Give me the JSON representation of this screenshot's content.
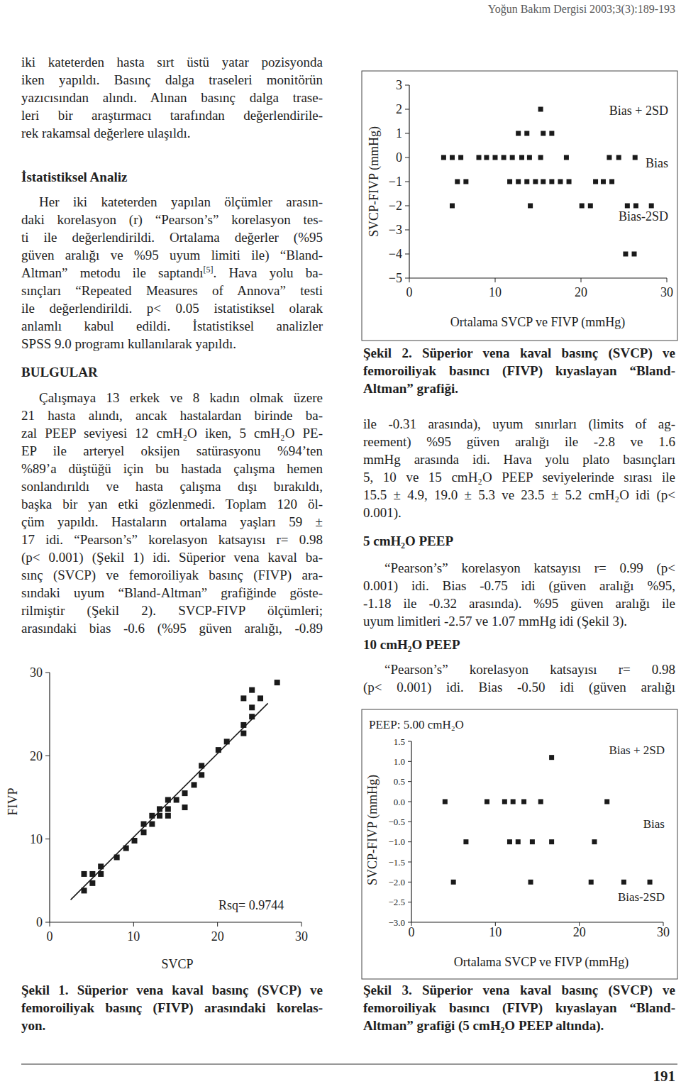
{
  "header": "Yoğun Bakım Dergisi 2003;3(3):189-193",
  "page_number": "191",
  "left_column": [
    {
      "lines": [
        "iki kateterden hasta sırt üstü yatar pozisyonda",
        "iken yapıldı. Basınç dalga traseleri monitörün",
        "yazıcısından alındı. Alınan basınç dalga trase-",
        "leri bir araştırmacı tarafından değerlendirile-",
        "rek rakamsal değerlere ulaşıldı."
      ]
    },
    {
      "heading": "İstatistiksel Analiz"
    },
    {
      "lines": [
        "Her iki kateterden yapılan ölçümler arasın-",
        "daki korelasyon (r) “Pearson’s” korelasyon tes-",
        "ti ile değerlendirildi. Ortalama değerler (%95",
        "güven aralığı ve %95 uyum limiti ile) “Bland-",
        [
          "Altman” metodu ile saptandı",
          {
            "sup": "[5]"
          },
          ". Hava yolu ba-"
        ],
        "sınçları “Repeated Measures of Annova” testi",
        "ile değerlendirildi. p< 0.05 istatistiksel olarak",
        "anlamlı kabul edildi. İstatistiksel analizler",
        "SPSS 9.0 programı kullanılarak yapıldı."
      ]
    },
    {
      "heading": "BULGULAR"
    },
    {
      "lines": [
        "Çalışmaya 13 erkek ve 8 kadın olmak üzere",
        "21 hasta alındı, ancak hastalardan birinde ba-",
        "zal PEEP seviyesi 12 cmH₂O iken, 5 cmH₂O PE-",
        "EP ile arteryel oksijen satürasyonu %94’ten",
        "%89’a düştüğü için bu hastada çalışma hemen",
        "sonlandırıldı ve hasta çalışma dışı bırakıldı,",
        "başka bir yan etki gözlenmedi. Toplam 120 öl-",
        "çüm yapıldı. Hastaların ortalama yaşları 59 ±",
        "17 idi. “Pearson’s” korelasyon katsayısı r= 0.98",
        "(p< 0.001) (Şekil 1) idi. Süperior vena kaval ba-",
        "sınç (SVCP) ve femoroiliyak basınç (FIVP) ara-",
        "sındaki uyum “Bland-Altman” grafiğinde göste-",
        "rilmiştir (Şekil 2). SVCP-FIVP ölçümleri;",
        "arasındaki bias -0.6 (%95 güven aralığı, -0.89"
      ]
    }
  ],
  "right_column": [
    {
      "lines": [
        "ile -0.31 arasında), uyum sınırları (limits of ag-",
        "reement) %95 güven aralığı ile -2.8 ve 1.6",
        "mmHg arasında idi. Hava yolu plato basınçları",
        "5, 10 ve 15 cmH₂O PEEP seviyelerinde sırası ile",
        "15.5 ± 4.9, 19.0 ± 5.3 ve 23.5 ± 5.2 cmH₂O idi (p<",
        "0.001)."
      ]
    },
    {
      "heading": "5 cmH₂O PEEP"
    },
    {
      "lines": [
        "“Pearson’s” korelasyon katsayısı r= 0.99 (p<",
        "0.001) idi. Bias -0.75 idi (güven aralığı %95,",
        "-1.18 ile -0.32 arasında). %95 güven aralığı ile",
        "uyum limitleri -2.57 ve 1.07 mmHg idi (Şekil 3)."
      ]
    },
    {
      "heading": "10 cmH₂O PEEP"
    },
    {
      "lines": [
        "“Pearson’s” korelasyon katsayısı r= 0.98",
        "(p< 0.001) idi. Bias -0.50 idi (güven aralığı"
      ]
    }
  ],
  "captions": [
    {
      "lines": [
        "Şekil 1. Süperior vena kaval basınç (SVCP) ve",
        "femoroiliyak basınç (FIVP) arasındaki korelas-",
        "yon."
      ]
    },
    {
      "lines": [
        "Şekil 2. Süperior vena kaval basınç (SVCP) ve",
        "femoroiliyak basıncı (FIVP) kıyaslayan “Bland-",
        "Altman” grafiği."
      ]
    },
    {
      "lines": [
        "Şekil 3. Süperior vena kaval basınç (SVCP) ve",
        "femoroiliyak basıncı (FIVP) kıyaslayan “Bland-",
        "Altman” grafiği (5 cmH₂O PEEP altında)."
      ]
    }
  ],
  "chart_data": [
    {
      "type": "scatter",
      "x_label": "SVCP",
      "y_label": "FIVP",
      "xlim": [
        0,
        30
      ],
      "ylim": [
        0,
        30
      ],
      "xticks": [
        0,
        10,
        20,
        30
      ],
      "yticks": [
        0,
        10,
        20,
        30
      ],
      "marker": "square",
      "color": "#1a1a1a",
      "x": [
        4.1,
        4.1,
        5.1,
        5.1,
        6.1,
        6.1,
        8.0,
        9.1,
        10.1,
        11.2,
        11.2,
        12.2,
        12.2,
        13.1,
        13.1,
        14.1,
        14.1,
        14.1,
        15.1,
        16.1,
        16.1,
        17.2,
        18.1,
        18.1,
        20.1,
        21.1,
        23.1,
        23.1,
        24.1,
        23.1,
        24.1,
        24.1,
        25.1,
        27.1
      ],
      "values": [
        3.8,
        5.8,
        5.8,
        4.7,
        5.8,
        6.7,
        7.8,
        8.9,
        9.8,
        10.8,
        11.8,
        11.8,
        12.8,
        12.8,
        13.6,
        12.8,
        13.6,
        14.7,
        14.7,
        13.8,
        15.5,
        16.5,
        17.7,
        18.8,
        20.7,
        21.7,
        22.7,
        23.7,
        24.7,
        26.9,
        25.8,
        27.9,
        26.9,
        28.8
      ],
      "fit_line": {
        "x": [
          2.5,
          26.0
        ],
        "y": [
          2.7,
          26.3
        ]
      },
      "annotation": "Rsq= 0.9744"
    },
    {
      "type": "scatter",
      "x_label": "Ortalama SVCP ve FIVP (mmHg)",
      "y_label": "SVCP-FIVP (mmHg)",
      "xlim": [
        0,
        30
      ],
      "ylim": [
        -5,
        3
      ],
      "xticks": [
        0,
        10,
        20,
        30
      ],
      "yticks": [
        {
          "value": -5,
          "label": "−5"
        },
        {
          "value": -4,
          "label": "−4"
        },
        {
          "value": -3,
          "label": "−3"
        },
        {
          "value": -2,
          "label": "−2"
        },
        {
          "value": -1,
          "label": "−1"
        },
        0,
        1,
        2,
        3
      ],
      "marker": "square",
      "color": "#1a1a1a",
      "x": [
        15.3,
        12.7,
        13.7,
        15.6,
        16.6,
        4.0,
        5.0,
        6.0,
        8.1,
        9.0,
        10.0,
        11.0,
        12.0,
        13.1,
        14.0,
        15.3,
        18.3,
        23.3,
        24.4,
        26.3,
        5.6,
        6.6,
        11.7,
        12.7,
        13.7,
        14.7,
        15.6,
        16.6,
        17.6,
        18.6,
        21.7,
        22.6,
        23.6,
        5.0,
        14.1,
        20.1,
        21.1,
        25.4,
        26.4,
        28.2,
        25.2,
        26.2
      ],
      "values": [
        2,
        1,
        1,
        1,
        1,
        0,
        0,
        0,
        0,
        0,
        0,
        0,
        0,
        0,
        0,
        0,
        0,
        0,
        0,
        0,
        -1,
        -1,
        -1,
        -1,
        -1,
        -1,
        -1,
        -1,
        -1,
        -1,
        -1,
        -1,
        -1,
        -2,
        -2,
        -2,
        -2,
        -2,
        -2,
        -2,
        -4,
        -4
      ],
      "reference_lines": [
        {
          "label": "Bias + 2SD",
          "value": 1.6
        },
        {
          "label": "Bias",
          "value": -0.6
        },
        {
          "label": "Bias-2SD",
          "value": -2.8
        }
      ]
    },
    {
      "type": "scatter",
      "title": "PEEP: 5.00 cmH₂O",
      "x_label": "Ortalama SVCP ve FIVP (mmHg)",
      "y_label": "SVCP-FIVP (mmHg)",
      "xlim": [
        0,
        30
      ],
      "ylim": [
        -3,
        1.5
      ],
      "xticks": [
        0,
        10,
        20,
        30
      ],
      "yticks": [
        {
          "value": -3,
          "label": "−3.0"
        },
        {
          "value": -2.5,
          "label": "−2.5"
        },
        {
          "value": -2,
          "label": "−2.0"
        },
        {
          "value": -1.5,
          "label": "−1.5"
        },
        {
          "value": -1,
          "label": "−1.0"
        },
        {
          "value": -0.5,
          "label": "−0.5"
        },
        {
          "value": 0,
          "label": "0.0"
        },
        0.5,
        {
          "value": 1,
          "label": "1.0"
        },
        1.5
      ],
      "marker": "square",
      "color": "#1a1a1a",
      "x": [
        16.7,
        4.0,
        9.0,
        11.1,
        12.1,
        13.4,
        15.4,
        23.3,
        6.5,
        11.7,
        12.7,
        14.4,
        16.7,
        21.8,
        5.0,
        14.2,
        21.4,
        25.3,
        28.4
      ],
      "values": [
        1.1,
        0,
        0,
        0,
        0,
        0,
        0,
        0,
        -1,
        -1,
        -1,
        -1,
        -1,
        -1,
        -2,
        -2,
        -2,
        -2,
        -2
      ],
      "reference_lines": [
        {
          "label": "Bias + 2SD",
          "value": 1.07
        },
        {
          "label": "Bias",
          "value": -0.75
        },
        {
          "label": "Bias-2SD",
          "value": -2.57
        }
      ]
    }
  ]
}
